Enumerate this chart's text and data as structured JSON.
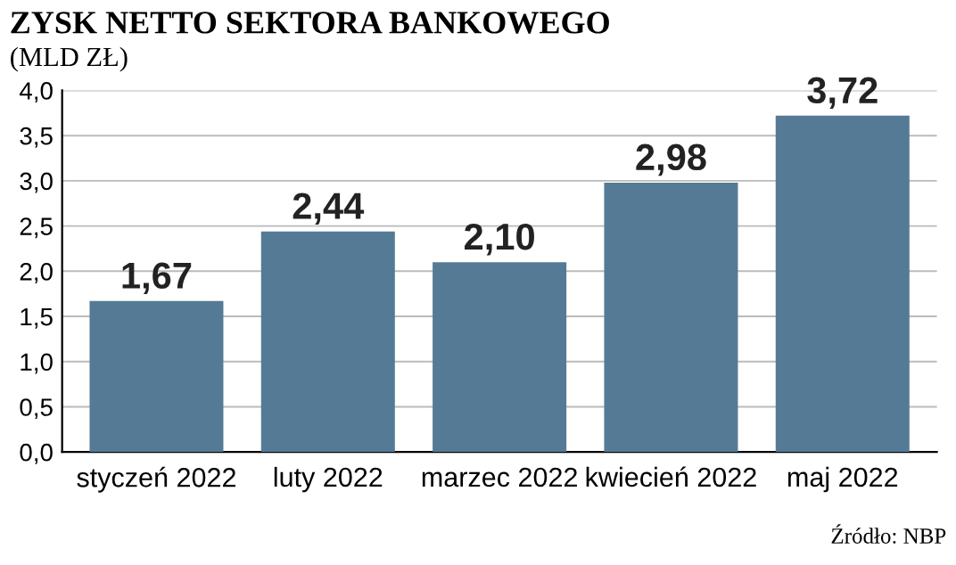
{
  "chart_data": {
    "type": "bar",
    "title": "ZYSK NETTO SEKTORA BANKOWEGO",
    "subtitle": "(MLD ZŁ)",
    "categories": [
      "styczeń 2022",
      "luty 2022",
      "marzec 2022",
      "kwiecień 2022",
      "maj 2022"
    ],
    "values": [
      1.67,
      2.44,
      2.1,
      2.98,
      3.72
    ],
    "value_labels": [
      "1,67",
      "2,44",
      "2,10",
      "2,98",
      "3,72"
    ],
    "color": "#557a96",
    "ylim": [
      0,
      4
    ],
    "yticks": [
      {
        "value": 0,
        "label": "0,0"
      },
      {
        "value": 0.5,
        "label": "0,5"
      },
      {
        "value": 1,
        "label": "1,0"
      },
      {
        "value": 1.5,
        "label": "1,5"
      },
      {
        "value": 2,
        "label": "2,0"
      },
      {
        "value": 2.5,
        "label": "2,5"
      },
      {
        "value": 3,
        "label": "3,0"
      },
      {
        "value": 3.5,
        "label": "3,5"
      },
      {
        "value": 4,
        "label": "4,0"
      }
    ],
    "grid": "y",
    "annotations": [
      "Źródło: NBP"
    ]
  }
}
